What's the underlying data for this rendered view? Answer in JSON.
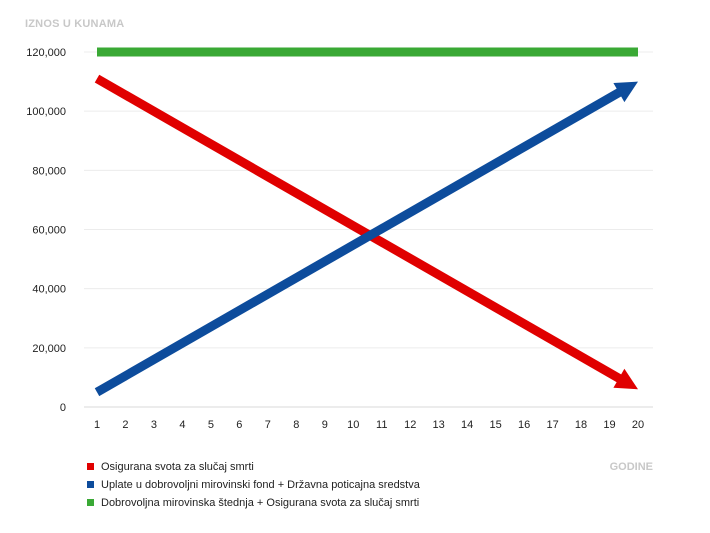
{
  "chart_data": {
    "type": "line",
    "title": "",
    "ylabel": "IZNOS U KUNAMA",
    "xlabel": "GODINE",
    "x": [
      1,
      2,
      3,
      4,
      5,
      6,
      7,
      8,
      9,
      10,
      11,
      12,
      13,
      14,
      15,
      16,
      17,
      18,
      19,
      20
    ],
    "x_tick_labels": [
      "1",
      "2",
      "3",
      "4",
      "5",
      "6",
      "7",
      "8",
      "9",
      "10",
      "11",
      "12",
      "13",
      "14",
      "15",
      "16",
      "17",
      "18",
      "19",
      "20"
    ],
    "ylim": [
      0,
      120000
    ],
    "y_ticks": [
      0,
      20000,
      40000,
      60000,
      80000,
      100000,
      120000
    ],
    "y_tick_labels": [
      "0",
      "20,000",
      "40,000",
      "60,000",
      "80,000",
      "100,000",
      "120,000"
    ],
    "grid": true,
    "legend_position": "bottom-left",
    "series": [
      {
        "name": "Osigurana svota za slučaj smrti",
        "color": "#e00000",
        "arrow": true,
        "points": [
          [
            1,
            111000
          ],
          [
            20,
            6000
          ]
        ]
      },
      {
        "name": "Uplate u dobrovoljni mirovinski fond + Državna poticajna sredstva",
        "color": "#0d4c9c",
        "arrow": true,
        "points": [
          [
            1,
            5000
          ],
          [
            20,
            110000
          ]
        ]
      },
      {
        "name": "Dobrovoljna mirovinska štednja + Osigurana svota za slučaj smrti",
        "color": "#3aa935",
        "arrow": false,
        "points": [
          [
            1,
            120000
          ],
          [
            20,
            120000
          ]
        ]
      }
    ]
  }
}
